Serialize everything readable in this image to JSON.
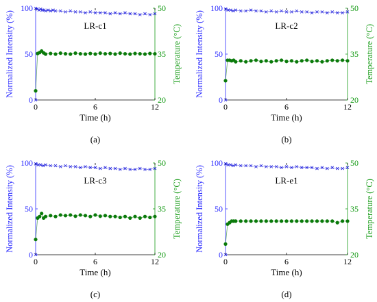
{
  "colors": {
    "intensity": "#1a1adc",
    "temperature": "#0a7a0a",
    "axis": "#000000",
    "intensity_axis": "#2a2aff",
    "temperature_axis": "#119911"
  },
  "chart_data": [
    {
      "type": "scatter",
      "panel_label": "(a)",
      "title": "LR-c1",
      "xlabel": "Time (h)",
      "ylabel_left": "Normalized Intensity (%)",
      "ylabel_right": "Temperature (°C)",
      "xlim": [
        0,
        12
      ],
      "ylim_left": [
        0,
        100
      ],
      "ylim_right": [
        20,
        50
      ],
      "xticks": [
        0,
        6,
        12
      ],
      "yticks_left": [
        0,
        50,
        100
      ],
      "yticks_right": [
        20,
        35,
        50
      ],
      "series": [
        {
          "axis": "left",
          "values": {
            "x": [
              0.0,
              0.17,
              0.34,
              0.5,
              0.67,
              0.84,
              1.0,
              1.25,
              1.5,
              1.75,
              2.0,
              2.5,
              3.0,
              3.5,
              4.0,
              4.5,
              5.0,
              5.5,
              6.0,
              6.5,
              7.0,
              7.5,
              8.0,
              8.5,
              9.0,
              9.5,
              10.0,
              10.5,
              11.0,
              11.5,
              12.0
            ],
            "y": [
              100,
              99,
              98,
              99,
              98,
              98,
              97,
              98,
              97,
              98,
              97,
              97,
              96,
              97,
              96,
              96,
              95,
              96,
              95,
              95,
              95,
              94,
              95,
              94,
              95,
              94,
              94,
              93,
              94,
              93,
              94
            ]
          }
        },
        {
          "axis": "right",
          "values": {
            "x": [
              0.0,
              0.2,
              0.4,
              0.6,
              0.8,
              1.0,
              1.5,
              2.0,
              2.5,
              3.0,
              3.5,
              4.0,
              4.5,
              5.0,
              5.5,
              6.0,
              6.5,
              7.0,
              7.5,
              8.0,
              8.5,
              9.0,
              9.5,
              10.0,
              10.5,
              11.0,
              11.5,
              12.0
            ],
            "y": [
              23.0,
              35.2,
              35.5,
              36.0,
              35.4,
              35.0,
              35.2,
              35.0,
              35.3,
              35.1,
              35.0,
              35.3,
              35.1,
              35.0,
              35.2,
              35.0,
              35.3,
              35.1,
              35.2,
              35.0,
              35.3,
              35.1,
              35.0,
              35.2,
              35.1,
              35.0,
              35.2,
              35.1
            ]
          }
        }
      ]
    },
    {
      "type": "scatter",
      "panel_label": "(b)",
      "title": "LR-c2",
      "xlabel": "Time (h)",
      "ylabel_left": "Normalized Intensity (%)",
      "ylabel_right": "Temperature (°C)",
      "xlim": [
        0,
        12
      ],
      "ylim_left": [
        0,
        100
      ],
      "ylim_right": [
        20,
        50
      ],
      "xticks": [
        0,
        6,
        12
      ],
      "yticks_left": [
        0,
        50,
        100
      ],
      "yticks_right": [
        20,
        35,
        50
      ],
      "series": [
        {
          "axis": "left",
          "values": {
            "x": [
              0.0,
              0.25,
              0.5,
              0.75,
              1.0,
              1.5,
              2.0,
              2.5,
              3.0,
              3.5,
              4.0,
              4.5,
              5.0,
              5.5,
              6.0,
              6.5,
              7.0,
              7.5,
              8.0,
              8.5,
              9.0,
              9.5,
              10.0,
              10.5,
              11.0,
              11.5,
              12.0
            ],
            "y": [
              99,
              98,
              98,
              97,
              98,
              97,
              97,
              98,
              97,
              97,
              96,
              97,
              96,
              97,
              96,
              96,
              97,
              96,
              96,
              95,
              96,
              96,
              95,
              96,
              95,
              95,
              96
            ]
          }
        },
        {
          "axis": "right",
          "values": {
            "x": [
              0.0,
              0.2,
              0.4,
              0.6,
              0.8,
              1.0,
              1.5,
              2.0,
              2.5,
              3.0,
              3.5,
              4.0,
              4.5,
              5.0,
              5.5,
              6.0,
              6.5,
              7.0,
              7.5,
              8.0,
              8.5,
              9.0,
              9.5,
              10.0,
              10.5,
              11.0,
              11.5,
              12.0
            ],
            "y": [
              26.3,
              33.0,
              33.0,
              32.8,
              33.0,
              32.5,
              32.8,
              32.5,
              32.8,
              33.0,
              32.6,
              32.8,
              32.5,
              32.8,
              33.0,
              32.6,
              32.8,
              32.5,
              32.8,
              33.0,
              32.6,
              32.8,
              32.5,
              32.8,
              33.0,
              32.8,
              33.0,
              32.8
            ]
          }
        }
      ]
    },
    {
      "type": "scatter",
      "panel_label": "(c)",
      "title": "LR-c3",
      "xlabel": "Time (h)",
      "ylabel_left": "Normalized Intensity (%)",
      "ylabel_right": "Temperature (°C)",
      "xlim": [
        0,
        12
      ],
      "ylim_left": [
        0,
        100
      ],
      "ylim_right": [
        20,
        50
      ],
      "xticks": [
        0,
        6,
        12
      ],
      "yticks_left": [
        0,
        50,
        100
      ],
      "yticks_right": [
        20,
        35,
        50
      ],
      "series": [
        {
          "axis": "left",
          "values": {
            "x": [
              0.0,
              0.25,
              0.5,
              0.75,
              1.0,
              1.5,
              2.0,
              2.5,
              3.0,
              3.5,
              4.0,
              4.5,
              5.0,
              5.5,
              6.0,
              6.5,
              7.0,
              7.5,
              8.0,
              8.5,
              9.0,
              9.5,
              10.0,
              10.5,
              11.0,
              11.5,
              12.0
            ],
            "y": [
              99,
              98,
              98,
              97,
              98,
              97,
              97,
              96,
              97,
              96,
              96,
              95,
              96,
              95,
              95,
              94,
              95,
              94,
              94,
              93,
              94,
              93,
              93,
              94,
              93,
              93,
              94
            ]
          }
        },
        {
          "axis": "right",
          "values": {
            "x": [
              0.0,
              0.2,
              0.4,
              0.6,
              0.8,
              1.0,
              1.5,
              2.0,
              2.5,
              3.0,
              3.5,
              4.0,
              4.5,
              5.0,
              5.5,
              6.0,
              6.5,
              7.0,
              7.5,
              8.0,
              8.5,
              9.0,
              9.5,
              10.0,
              10.5,
              11.0,
              11.5,
              12.0
            ],
            "y": [
              25.0,
              32.0,
              32.5,
              33.5,
              32.0,
              32.5,
              32.8,
              32.5,
              33.0,
              32.8,
              33.0,
              32.6,
              33.0,
              32.8,
              32.5,
              33.0,
              32.6,
              32.8,
              32.5,
              32.5,
              32.2,
              32.5,
              32.0,
              32.5,
              32.0,
              32.5,
              32.2,
              32.5
            ]
          }
        }
      ]
    },
    {
      "type": "scatter",
      "panel_label": "(d)",
      "title": "LR-e1",
      "xlabel": "Time (h)",
      "ylabel_left": "Normalized Intensity (%)",
      "ylabel_right": "Temperature (°C)",
      "xlim": [
        0,
        12
      ],
      "ylim_left": [
        0,
        100
      ],
      "ylim_right": [
        20,
        50
      ],
      "xticks": [
        0,
        6,
        12
      ],
      "yticks_left": [
        0,
        50,
        100
      ],
      "yticks_right": [
        20,
        35,
        50
      ],
      "series": [
        {
          "axis": "left",
          "values": {
            "x": [
              0.0,
              0.25,
              0.5,
              0.75,
              1.0,
              1.5,
              2.0,
              2.5,
              3.0,
              3.5,
              4.0,
              4.5,
              5.0,
              5.5,
              6.0,
              6.5,
              7.0,
              7.5,
              8.0,
              8.5,
              9.0,
              9.5,
              10.0,
              10.5,
              11.0,
              11.5,
              12.0
            ],
            "y": [
              99,
              98,
              98,
              97,
              98,
              97,
              97,
              97,
              96,
              97,
              96,
              96,
              96,
              95,
              96,
              95,
              96,
              95,
              95,
              95,
              94,
              95,
              94,
              95,
              94,
              94,
              95
            ]
          }
        },
        {
          "axis": "right",
          "values": {
            "x": [
              0.0,
              0.2,
              0.4,
              0.6,
              0.8,
              1.0,
              1.5,
              2.0,
              2.5,
              3.0,
              3.5,
              4.0,
              4.5,
              5.0,
              5.5,
              6.0,
              6.5,
              7.0,
              7.5,
              8.0,
              8.5,
              9.0,
              9.5,
              10.0,
              10.5,
              11.0,
              11.5,
              12.0
            ],
            "y": [
              23.5,
              30.0,
              30.5,
              31.0,
              31.0,
              31.0,
              31.0,
              31.0,
              31.0,
              31.0,
              31.0,
              31.0,
              31.0,
              31.0,
              31.0,
              31.0,
              31.0,
              31.0,
              31.0,
              31.0,
              31.0,
              31.0,
              31.0,
              31.0,
              31.0,
              30.5,
              31.0,
              31.0
            ]
          }
        }
      ]
    }
  ]
}
